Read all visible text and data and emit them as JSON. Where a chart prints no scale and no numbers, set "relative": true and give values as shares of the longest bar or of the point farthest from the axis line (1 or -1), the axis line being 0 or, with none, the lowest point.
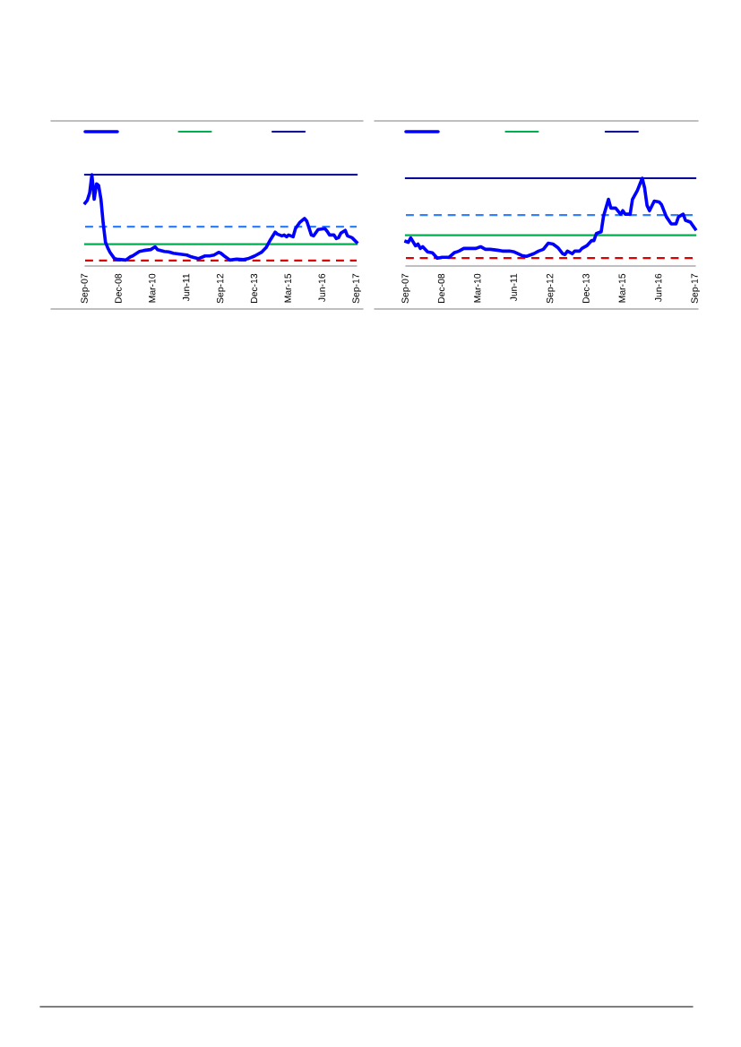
{
  "chart_data": [
    {
      "type": "line",
      "relative": true,
      "grid": false,
      "xlim": [
        "2007-09",
        "2017-09"
      ],
      "xticks": [
        {
          "value": "2007-09",
          "label": "Sep-07"
        },
        {
          "value": "2008-12",
          "label": "Dec-08"
        },
        {
          "value": "2010-03",
          "label": "Mar-10"
        },
        {
          "value": "2011-06",
          "label": "Jun-11"
        },
        {
          "value": "2012-09",
          "label": "Sep-12"
        },
        {
          "value": "2013-12",
          "label": "Dec-13"
        },
        {
          "value": "2015-03",
          "label": "Mar-15"
        },
        {
          "value": "2016-06",
          "label": "Jun-16"
        },
        {
          "value": "2017-09",
          "label": "Sep-17"
        }
      ],
      "series": [
        {
          "color": "#0000ff",
          "x": [
            "2007-09",
            "2007-10",
            "2007-11",
            "2007-12",
            "2008-01",
            "2008-02",
            "2008-03",
            "2008-04",
            "2008-05",
            "2008-06",
            "2008-07",
            "2008-08",
            "2008-10",
            "2008-11",
            "2009-01",
            "2009-03",
            "2009-05",
            "2009-06",
            "2009-09",
            "2009-11",
            "2010-02",
            "2010-04",
            "2010-05",
            "2010-08",
            "2010-10",
            "2010-12",
            "2011-03",
            "2011-06",
            "2011-08",
            "2011-11",
            "2012-02",
            "2012-04",
            "2012-06",
            "2012-08",
            "2012-09",
            "2012-11",
            "2013-01",
            "2013-04",
            "2013-07",
            "2013-09",
            "2013-12",
            "2014-03",
            "2014-05",
            "2014-07",
            "2014-09",
            "2014-10",
            "2014-12",
            "2015-01",
            "2015-02",
            "2015-03",
            "2015-05",
            "2015-06",
            "2015-08",
            "2015-10",
            "2015-11",
            "2016-01",
            "2016-02",
            "2016-04",
            "2016-07",
            "2016-08",
            "2016-09",
            "2016-11",
            "2016-12",
            "2017-01",
            "2017-02",
            "2017-04",
            "2017-05",
            "2017-07",
            "2017-09"
          ],
          "values": [
            0.69,
            0.72,
            0.8,
            1.0,
            0.73,
            0.9,
            0.88,
            0.73,
            0.47,
            0.26,
            0.2,
            0.15,
            0.08,
            0.075,
            0.07,
            0.065,
            0.1,
            0.11,
            0.16,
            0.17,
            0.18,
            0.21,
            0.18,
            0.16,
            0.155,
            0.14,
            0.13,
            0.12,
            0.1,
            0.08,
            0.11,
            0.11,
            0.12,
            0.15,
            0.14,
            0.1,
            0.065,
            0.075,
            0.07,
            0.08,
            0.11,
            0.15,
            0.2,
            0.29,
            0.37,
            0.35,
            0.33,
            0.34,
            0.32,
            0.34,
            0.32,
            0.41,
            0.48,
            0.52,
            0.49,
            0.34,
            0.33,
            0.4,
            0.41,
            0.38,
            0.34,
            0.34,
            0.3,
            0.31,
            0.36,
            0.39,
            0.33,
            0.31,
            0.26
          ]
        }
      ],
      "ref_lines": [
        {
          "axis": "y",
          "value": 1.0,
          "color": "#000099",
          "line_style": "solid"
        },
        {
          "axis": "y",
          "value": 0.43,
          "color": "#3380ff",
          "line_style": "dashed"
        },
        {
          "axis": "y",
          "value": 0.24,
          "color": "#00b050",
          "line_style": "solid"
        },
        {
          "axis": "y",
          "value": 0.06,
          "color": "#e00000",
          "line_style": "dashed"
        }
      ]
    },
    {
      "type": "line",
      "relative": true,
      "grid": false,
      "xlim": [
        "2007-09",
        "2017-09"
      ],
      "xticks": [
        {
          "value": "2007-09",
          "label": "Sep-07"
        },
        {
          "value": "2008-12",
          "label": "Dec-08"
        },
        {
          "value": "2010-03",
          "label": "Mar-10"
        },
        {
          "value": "2011-06",
          "label": "Jun-11"
        },
        {
          "value": "2012-09",
          "label": "Sep-12"
        },
        {
          "value": "2013-12",
          "label": "Dec-13"
        },
        {
          "value": "2015-03",
          "label": "Mar-15"
        },
        {
          "value": "2016-06",
          "label": "Jun-16"
        },
        {
          "value": "2017-09",
          "label": "Sep-17"
        }
      ],
      "series": [
        {
          "color": "#0000ff",
          "x": [
            "2007-09",
            "2007-10",
            "2007-11",
            "2008-01",
            "2008-02",
            "2008-03",
            "2008-04",
            "2008-06",
            "2008-08",
            "2008-10",
            "2008-12",
            "2009-03",
            "2009-05",
            "2009-07",
            "2009-09",
            "2009-11",
            "2010-02",
            "2010-04",
            "2010-06",
            "2010-08",
            "2010-11",
            "2011-01",
            "2011-04",
            "2011-06",
            "2011-09",
            "2011-11",
            "2012-02",
            "2012-04",
            "2012-06",
            "2012-08",
            "2012-10",
            "2012-12",
            "2013-02",
            "2013-03",
            "2013-04",
            "2013-06",
            "2013-07",
            "2013-09",
            "2013-10",
            "2013-12",
            "2014-02",
            "2014-03",
            "2014-04",
            "2014-06",
            "2014-07",
            "2014-09",
            "2014-10",
            "2014-12",
            "2015-02",
            "2015-03",
            "2015-04",
            "2015-06",
            "2015-07",
            "2015-09",
            "2015-10",
            "2015-11",
            "2015-12",
            "2016-01",
            "2016-02",
            "2016-04",
            "2016-06",
            "2016-07",
            "2016-09",
            "2016-11",
            "2017-01",
            "2017-02",
            "2017-04",
            "2017-05",
            "2017-07",
            "2017-09"
          ],
          "values": [
            0.28,
            0.27,
            0.32,
            0.23,
            0.25,
            0.2,
            0.22,
            0.16,
            0.15,
            0.09,
            0.1,
            0.1,
            0.15,
            0.17,
            0.2,
            0.2,
            0.2,
            0.22,
            0.19,
            0.19,
            0.18,
            0.17,
            0.17,
            0.16,
            0.12,
            0.11,
            0.14,
            0.17,
            0.19,
            0.26,
            0.25,
            0.21,
            0.14,
            0.13,
            0.17,
            0.14,
            0.17,
            0.17,
            0.2,
            0.23,
            0.29,
            0.29,
            0.37,
            0.39,
            0.57,
            0.76,
            0.66,
            0.66,
            0.59,
            0.63,
            0.59,
            0.59,
            0.76,
            0.86,
            0.93,
            1.0,
            0.89,
            0.69,
            0.63,
            0.74,
            0.73,
            0.7,
            0.56,
            0.48,
            0.48,
            0.56,
            0.59,
            0.52,
            0.5,
            0.42
          ]
        }
      ],
      "ref_lines": [
        {
          "axis": "y",
          "value": 1.0,
          "color": "#000099",
          "line_style": "solid"
        },
        {
          "axis": "y",
          "value": 0.58,
          "color": "#3380ff",
          "line_style": "dashed"
        },
        {
          "axis": "y",
          "value": 0.35,
          "color": "#00b050",
          "line_style": "solid"
        },
        {
          "axis": "y",
          "value": 0.09,
          "color": "#e00000",
          "line_style": "dashed"
        }
      ]
    }
  ]
}
